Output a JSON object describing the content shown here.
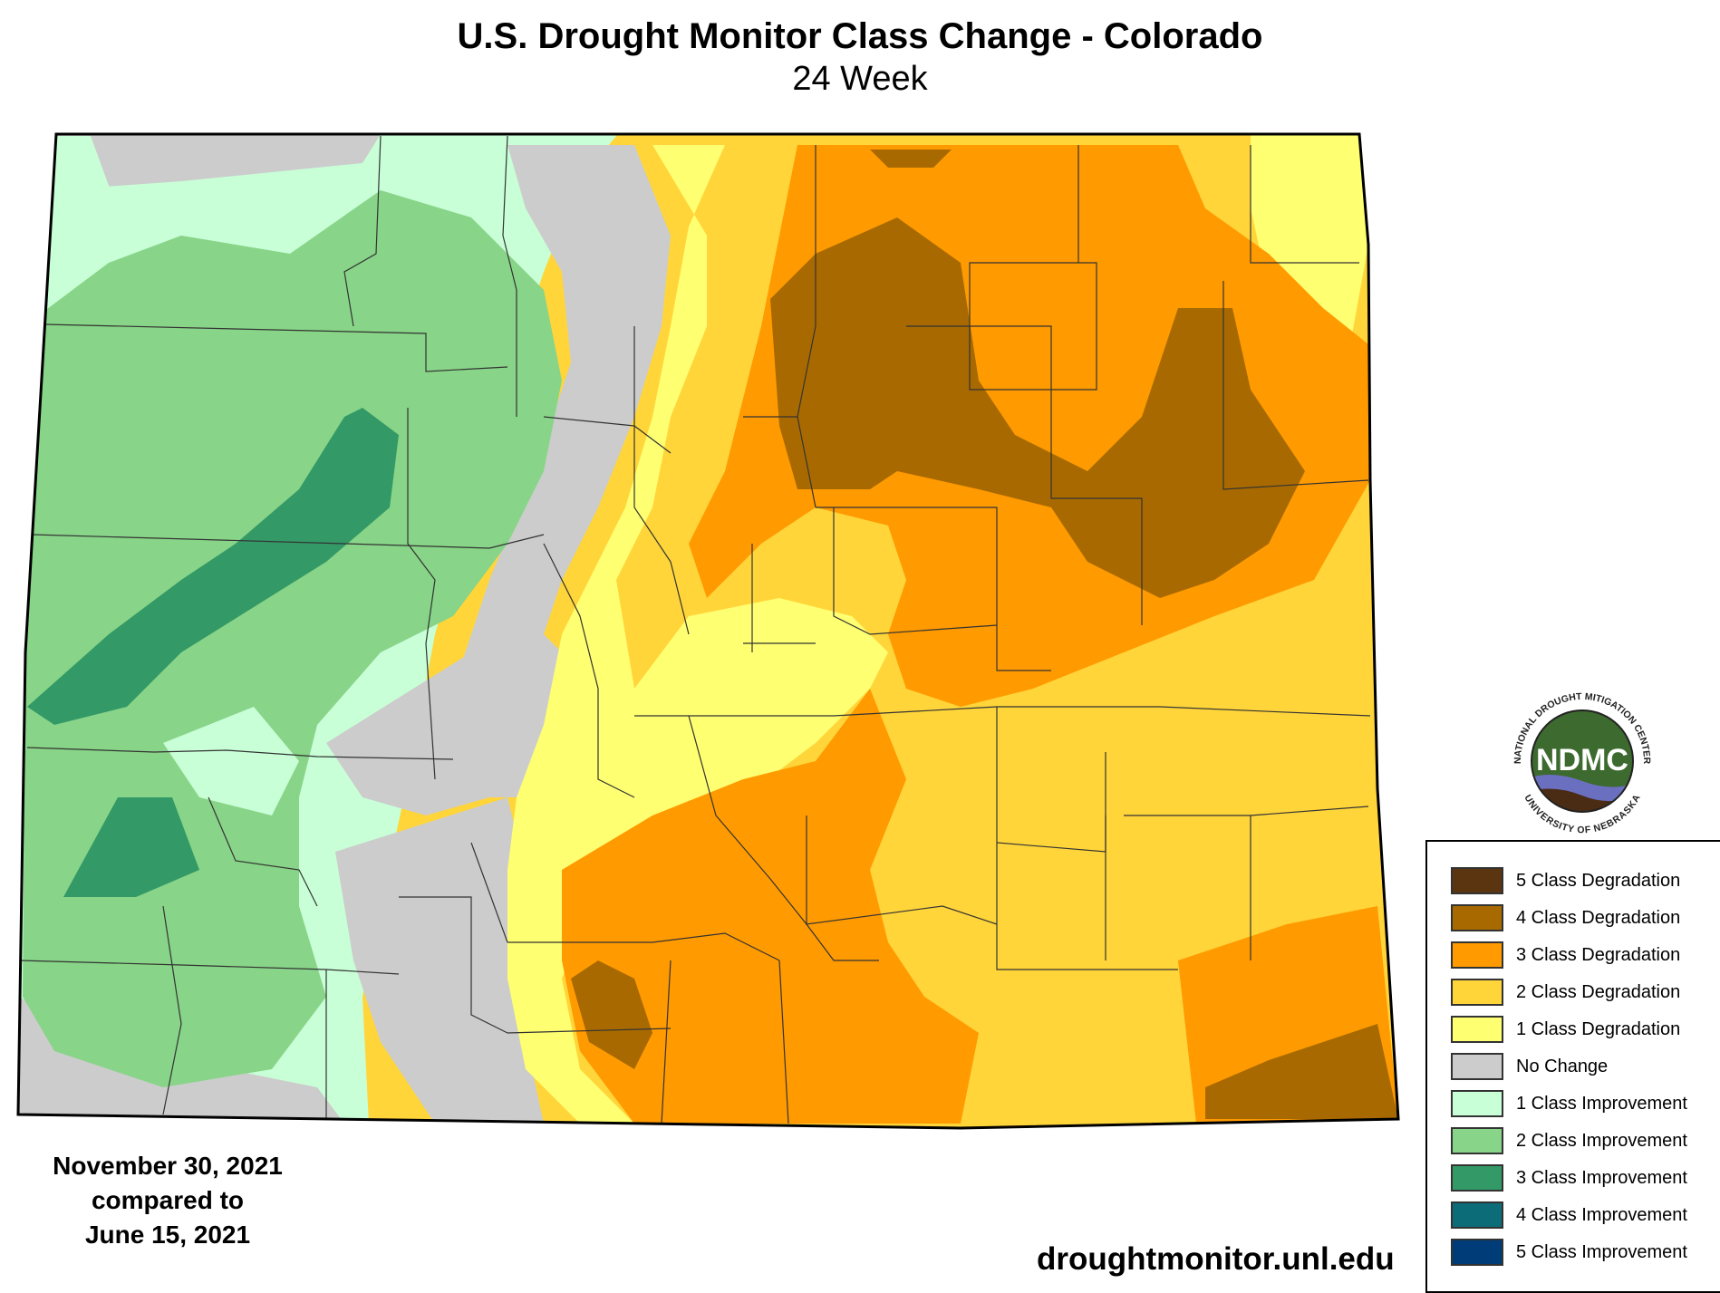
{
  "title": "U.S. Drought Monitor Class Change - Colorado",
  "subtitle": "24 Week",
  "dates": {
    "line1": "November 30, 2021",
    "line2": "compared to",
    "line3": "June 15, 2021"
  },
  "source_url": "droughtmonitor.unl.edu",
  "logo": {
    "abbrev": "NDMC",
    "ring_top": "NATIONAL DROUGHT MITIGATION CENTER",
    "ring_bottom": "UNIVERSITY OF NEBRASKA"
  },
  "legend": [
    {
      "label": "5 Class Degradation",
      "color": "#5b3510"
    },
    {
      "label": "4 Class Degradation",
      "color": "#a86a00"
    },
    {
      "label": "3 Class Degradation",
      "color": "#ff9a00"
    },
    {
      "label": "2 Class Degradation",
      "color": "#ffd53a"
    },
    {
      "label": "1 Class Degradation",
      "color": "#ffff72"
    },
    {
      "label": "No Change",
      "color": "#cccccc"
    },
    {
      "label": "1 Class Improvement",
      "color": "#c8ffd7"
    },
    {
      "label": "2 Class Improvement",
      "color": "#88d488"
    },
    {
      "label": "3 Class Improvement",
      "color": "#339966"
    },
    {
      "label": "4 Class Improvement",
      "color": "#0c6c78"
    },
    {
      "label": "5 Class Improvement",
      "color": "#003c78"
    }
  ]
}
